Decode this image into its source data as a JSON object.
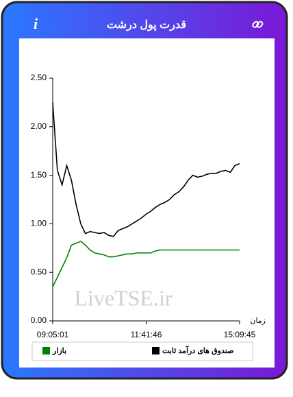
{
  "header": {
    "title": "قدرت پول درشت",
    "info_icon": "i"
  },
  "watermark": "LiveTSE.ir",
  "chart_data": {
    "type": "line",
    "x_label": "زمان",
    "categories": [
      "09:05:01",
      null,
      null,
      null,
      null,
      null,
      null,
      null,
      null,
      null,
      null,
      null,
      null,
      null,
      null,
      null,
      null,
      null,
      null,
      null,
      "11:41:46",
      null,
      null,
      null,
      null,
      null,
      null,
      null,
      null,
      null,
      null,
      null,
      null,
      null,
      null,
      null,
      null,
      null,
      null,
      null,
      "15:09:45"
    ],
    "ylim": [
      0,
      2.5
    ],
    "yticks": [
      {
        "value": 0,
        "label": "0.00"
      },
      {
        "value": 0.5,
        "label": "0.50"
      },
      {
        "value": 1,
        "label": "1.00"
      },
      {
        "value": 1.5,
        "label": "1.50"
      },
      {
        "value": 2,
        "label": "2.00"
      },
      {
        "value": 2.5,
        "label": "2.50"
      }
    ],
    "series": [
      {
        "name": "صندوق های درآمد ثابت",
        "color": "#000000",
        "values": [
          2.25,
          1.55,
          1.4,
          1.6,
          1.45,
          1.2,
          1.0,
          0.9,
          0.92,
          0.91,
          0.9,
          0.91,
          0.88,
          0.87,
          0.93,
          0.95,
          0.97,
          1.0,
          1.03,
          1.06,
          1.1,
          1.13,
          1.17,
          1.2,
          1.22,
          1.25,
          1.3,
          1.33,
          1.38,
          1.45,
          1.5,
          1.48,
          1.49,
          1.51,
          1.52,
          1.52,
          1.54,
          1.55,
          1.53,
          1.6,
          1.62
        ]
      },
      {
        "name": "بازار",
        "color": "#008000",
        "values": [
          0.35,
          0.45,
          0.55,
          0.65,
          0.78,
          0.8,
          0.82,
          0.78,
          0.73,
          0.7,
          0.69,
          0.68,
          0.66,
          0.66,
          0.67,
          0.68,
          0.69,
          0.69,
          0.7,
          0.7,
          0.7,
          0.7,
          0.72,
          0.73,
          0.73,
          0.73,
          0.73,
          0.73,
          0.73,
          0.73,
          0.73,
          0.73,
          0.73,
          0.73,
          0.73,
          0.73,
          0.73,
          0.73,
          0.73,
          0.73,
          0.73
        ]
      }
    ]
  }
}
